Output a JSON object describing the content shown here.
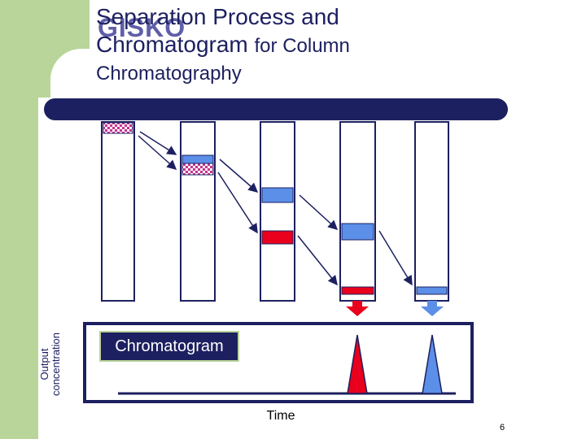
{
  "slide": {
    "logo_text": "GISKO",
    "title_line1": "Separation Process and",
    "title_line2": "Chromatogram",
    "title_line2_suffix": "for Column",
    "title_line3": "Chromatography",
    "y_label_line1": "Output",
    "y_label_line2": "concentration",
    "chromatogram_label": "Chromatogram",
    "x_label": "Time",
    "page_number": "6"
  },
  "colors": {
    "accent_green": "#b9d59a",
    "navy": "#1d2060",
    "red_component": "#e8001c",
    "blue_component": "#5b8fe8",
    "mixture_pattern": "#c7338f"
  },
  "columns": [
    {
      "stage": 1,
      "bands": [
        "mixture"
      ]
    },
    {
      "stage": 2,
      "bands": [
        "blue",
        "mixture"
      ]
    },
    {
      "stage": 3,
      "bands": [
        "blue",
        "red"
      ]
    },
    {
      "stage": 4,
      "bands": [
        "blue",
        "red"
      ]
    },
    {
      "stage": 5,
      "bands": [
        "blue"
      ]
    }
  ],
  "chart_data": {
    "type": "chromatogram",
    "peaks": [
      {
        "component": "red",
        "color": "#e8001c",
        "order": 1
      },
      {
        "component": "blue",
        "color": "#5b8fe8",
        "order": 2
      }
    ]
  }
}
